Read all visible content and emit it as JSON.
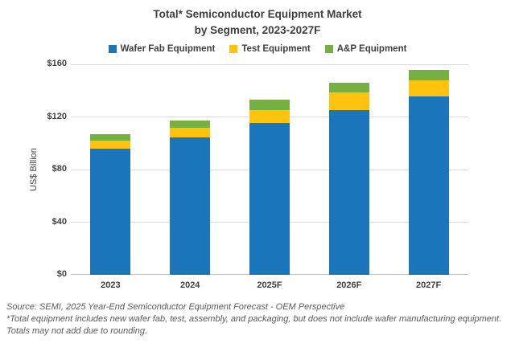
{
  "title": {
    "line1": "Total* Semiconductor Equipment Market",
    "line2": "by Segment, 2023-2027F"
  },
  "chart_data": {
    "type": "bar",
    "stacked": true,
    "title": "Total* Semiconductor Equipment Market by Segment, 2023-2027F",
    "categories": [
      "2023",
      "2024",
      "2025F",
      "2026F",
      "2027F"
    ],
    "series": [
      {
        "name": "Wafer Fab Equipment",
        "color": "#1b75bb",
        "values": [
          96.0,
          104.3,
          115.5,
          125.5,
          135.5
        ]
      },
      {
        "name": "Test Equipment",
        "color": "#ffc20e",
        "values": [
          6.3,
          7.5,
          10.0,
          13.0,
          12.5
        ]
      },
      {
        "name": "A&P Equipment",
        "color": "#76b043",
        "values": [
          4.5,
          5.3,
          7.5,
          7.5,
          7.5
        ]
      }
    ],
    "totals_approx": [
      106.8,
      117.1,
      133.0,
      146.0,
      155.5
    ],
    "xlabel": "",
    "ylabel": "US$ Billion",
    "ylim": [
      0,
      160
    ],
    "yticks": [
      {
        "value": 0,
        "label": "$0"
      },
      {
        "value": 40,
        "label": "$40"
      },
      {
        "value": 80,
        "label": "$80"
      },
      {
        "value": 120,
        "label": "$120"
      },
      {
        "value": 160,
        "label": "$160"
      }
    ],
    "grid": true,
    "legend_position": "top"
  },
  "colors": {
    "wafer_fab": "#1b75bb",
    "test": "#ffc20e",
    "anp": "#76b043",
    "gridline": "#d9d9d9",
    "axisline": "#bfbfbf",
    "text": "#404040",
    "footer_text": "#595959"
  },
  "footer": {
    "lines": [
      "Source: SEMI, 2025 Year-End Semiconductor Equipment Forecast - OEM Perspective",
      "*Total equipment includes new wafer fab, test, assembly, and packaging, but does not include wafer manufacturing equipment.",
      "Totals may not add due to rounding."
    ]
  }
}
